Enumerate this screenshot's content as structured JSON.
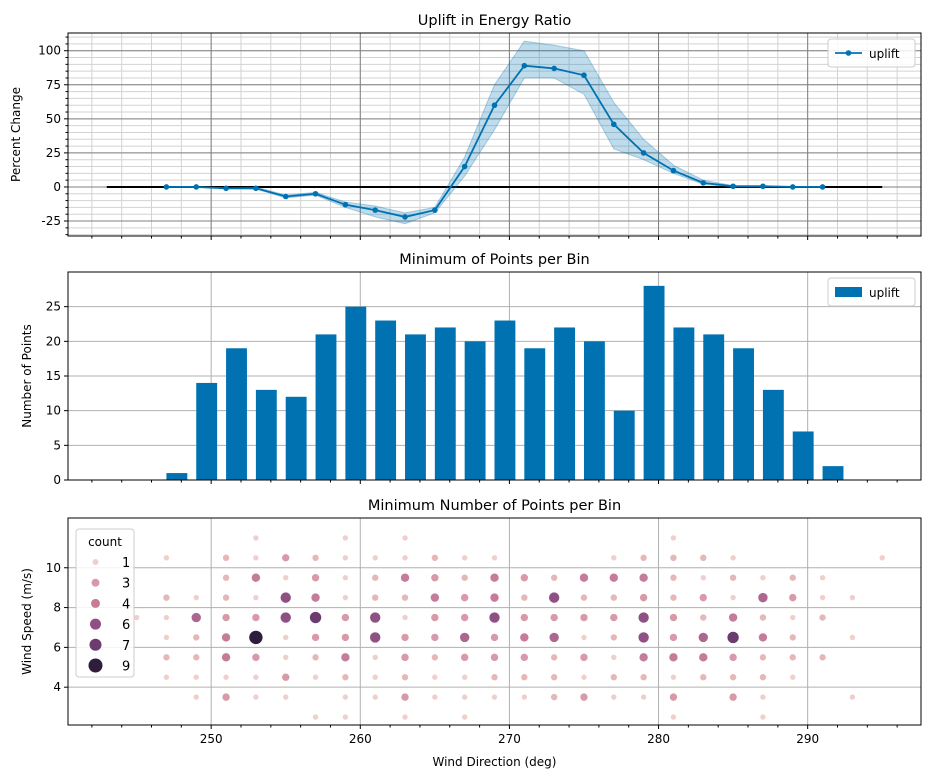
{
  "chart_data": [
    {
      "type": "line",
      "title": "Uplift in Energy Ratio",
      "xlabel": "",
      "ylabel": "Percent Change",
      "xlim": [
        240.4,
        297.6
      ],
      "ylim": [
        -36,
        113
      ],
      "yticks": [
        -25,
        0,
        25,
        50,
        75,
        100
      ],
      "grid": "major and minor",
      "legend": {
        "placement": "top-right",
        "entries": [
          "uplift"
        ]
      },
      "reference_line": {
        "y": 0,
        "x_range": [
          243,
          295
        ],
        "color": "#000000"
      },
      "x": [
        247,
        249,
        251,
        253,
        255,
        257,
        259,
        261,
        263,
        265,
        267,
        269,
        271,
        273,
        275,
        277,
        279,
        281,
        283,
        285,
        287,
        289,
        291
      ],
      "series": [
        {
          "name": "uplift",
          "color": "#0072b2",
          "values": [
            0,
            0,
            -1,
            -1,
            -7,
            -5,
            -13,
            -17,
            -22,
            -17,
            15,
            60,
            89,
            87,
            82,
            46,
            25,
            12,
            3,
            0.5,
            0.5,
            0,
            0
          ],
          "band_lower": [
            0,
            0,
            -1,
            -1.5,
            -8,
            -6,
            -15,
            -22,
            -27,
            -19,
            8,
            42,
            80,
            80,
            68,
            28,
            20,
            10,
            2,
            0,
            0,
            0,
            0
          ],
          "band_upper": [
            0,
            0,
            -1,
            0,
            -6,
            -4,
            -11,
            -14,
            -19,
            -15,
            22,
            75,
            107,
            104,
            100,
            62,
            35,
            16,
            5,
            1,
            1,
            0,
            0
          ]
        }
      ]
    },
    {
      "type": "bar",
      "title": "Minimum of Points per Bin",
      "xlabel": "",
      "ylabel": "Number of Points",
      "xlim": [
        240.4,
        297.6
      ],
      "ylim": [
        0,
        30
      ],
      "yticks": [
        0,
        5,
        10,
        15,
        20,
        25
      ],
      "grid": "major",
      "legend": {
        "placement": "top-right",
        "entries": [
          "uplift"
        ]
      },
      "bar_width": 1.4,
      "x": [
        247,
        249,
        251,
        253,
        255,
        257,
        259,
        261,
        263,
        265,
        267,
        269,
        271,
        273,
        275,
        277,
        279,
        281,
        283,
        285,
        287,
        289,
        291
      ],
      "series": [
        {
          "name": "uplift",
          "color": "#0072b2",
          "values": [
            1,
            14,
            19,
            13,
            12,
            21,
            25,
            23,
            21,
            22,
            20,
            23,
            19,
            22,
            20,
            10,
            28,
            22,
            21,
            19,
            13,
            7,
            2
          ]
        }
      ]
    },
    {
      "type": "scatter",
      "title": "Minimum Number of Points per Bin",
      "xlabel": "Wind Direction (deg)",
      "ylabel": "Wind Speed (m/s)",
      "xlim": [
        240.4,
        297.6
      ],
      "ylim": [
        2.1,
        12.5
      ],
      "xticks": [
        250,
        260,
        270,
        280,
        290
      ],
      "yticks": [
        4,
        6,
        8,
        10
      ],
      "grid": "major",
      "legend": {
        "placement": "top-left",
        "title": "count",
        "entries": [
          "1",
          "3",
          "4",
          "6",
          "7",
          "9"
        ]
      },
      "hue_colors": {
        "1": "#efcfcc",
        "2": "#e5b7b7",
        "3": "#d89aa8",
        "4": "#c57b9a",
        "5": "#ad6690",
        "6": "#8f5083",
        "7": "#6c3c71",
        "9": "#2d1e3e"
      },
      "points": [
        [
          253,
          11.5,
          1
        ],
        [
          259,
          11.5,
          1
        ],
        [
          263,
          11.5,
          1
        ],
        [
          281,
          11.5,
          1
        ],
        [
          247,
          10.5,
          1
        ],
        [
          251,
          10.5,
          2
        ],
        [
          253,
          10.5,
          1
        ],
        [
          255,
          10.5,
          3
        ],
        [
          257,
          10.5,
          2
        ],
        [
          259,
          10.5,
          1
        ],
        [
          261,
          10.5,
          1
        ],
        [
          263,
          10.5,
          1
        ],
        [
          265,
          10.5,
          2
        ],
        [
          267,
          10.5,
          1
        ],
        [
          269,
          10.5,
          1
        ],
        [
          277,
          10.5,
          1
        ],
        [
          279,
          10.5,
          2
        ],
        [
          281,
          10.5,
          2
        ],
        [
          283,
          10.5,
          2
        ],
        [
          285,
          10.5,
          1
        ],
        [
          295,
          10.5,
          1
        ],
        [
          251,
          9.5,
          2
        ],
        [
          253,
          9.5,
          4
        ],
        [
          255,
          9.5,
          1
        ],
        [
          257,
          9.5,
          3
        ],
        [
          259,
          9.5,
          1
        ],
        [
          261,
          9.5,
          2
        ],
        [
          263,
          9.5,
          4
        ],
        [
          265,
          9.5,
          3
        ],
        [
          267,
          9.5,
          2
        ],
        [
          269,
          9.5,
          4
        ],
        [
          271,
          9.5,
          3
        ],
        [
          273,
          9.5,
          2
        ],
        [
          275,
          9.5,
          4
        ],
        [
          277,
          9.5,
          4
        ],
        [
          279,
          9.5,
          4
        ],
        [
          281,
          9.5,
          2
        ],
        [
          283,
          9.5,
          1
        ],
        [
          285,
          9.5,
          2
        ],
        [
          287,
          9.5,
          1
        ],
        [
          289,
          9.5,
          2
        ],
        [
          291,
          9.5,
          1
        ],
        [
          247,
          8.5,
          2
        ],
        [
          249,
          8.5,
          1
        ],
        [
          251,
          8.5,
          2
        ],
        [
          253,
          8.5,
          1
        ],
        [
          255,
          8.5,
          6
        ],
        [
          257,
          8.5,
          4
        ],
        [
          259,
          8.5,
          1
        ],
        [
          261,
          8.5,
          2
        ],
        [
          263,
          8.5,
          2
        ],
        [
          265,
          8.5,
          4
        ],
        [
          267,
          8.5,
          3
        ],
        [
          269,
          8.5,
          4
        ],
        [
          271,
          8.5,
          2
        ],
        [
          273,
          8.5,
          6
        ],
        [
          275,
          8.5,
          2
        ],
        [
          277,
          8.5,
          2
        ],
        [
          279,
          8.5,
          3
        ],
        [
          281,
          8.5,
          2
        ],
        [
          283,
          8.5,
          3
        ],
        [
          285,
          8.5,
          1
        ],
        [
          287,
          8.5,
          5
        ],
        [
          289,
          8.5,
          3
        ],
        [
          291,
          8.5,
          1
        ],
        [
          293,
          8.5,
          1
        ],
        [
          245,
          7.5,
          1
        ],
        [
          247,
          7.5,
          1
        ],
        [
          249,
          7.5,
          5
        ],
        [
          251,
          7.5,
          3
        ],
        [
          253,
          7.5,
          3
        ],
        [
          255,
          7.5,
          6
        ],
        [
          257,
          7.5,
          7
        ],
        [
          259,
          7.5,
          3
        ],
        [
          261,
          7.5,
          6
        ],
        [
          263,
          7.5,
          1
        ],
        [
          265,
          7.5,
          3
        ],
        [
          267,
          7.5,
          3
        ],
        [
          269,
          7.5,
          6
        ],
        [
          271,
          7.5,
          3
        ],
        [
          273,
          7.5,
          3
        ],
        [
          275,
          7.5,
          3
        ],
        [
          277,
          7.5,
          3
        ],
        [
          279,
          7.5,
          6
        ],
        [
          281,
          7.5,
          3
        ],
        [
          283,
          7.5,
          2
        ],
        [
          285,
          7.5,
          4
        ],
        [
          287,
          7.5,
          2
        ],
        [
          289,
          7.5,
          1
        ],
        [
          291,
          7.5,
          2
        ],
        [
          247,
          6.5,
          1
        ],
        [
          249,
          6.5,
          2
        ],
        [
          251,
          6.5,
          4
        ],
        [
          253,
          6.5,
          9
        ],
        [
          255,
          6.5,
          1
        ],
        [
          257,
          6.5,
          3
        ],
        [
          259,
          6.5,
          3
        ],
        [
          261,
          6.5,
          6
        ],
        [
          263,
          6.5,
          3
        ],
        [
          265,
          6.5,
          3
        ],
        [
          267,
          6.5,
          5
        ],
        [
          269,
          6.5,
          3
        ],
        [
          271,
          6.5,
          4
        ],
        [
          273,
          6.5,
          5
        ],
        [
          275,
          6.5,
          1
        ],
        [
          277,
          6.5,
          2
        ],
        [
          279,
          6.5,
          6
        ],
        [
          281,
          6.5,
          3
        ],
        [
          283,
          6.5,
          5
        ],
        [
          285,
          6.5,
          7
        ],
        [
          287,
          6.5,
          4
        ],
        [
          289,
          6.5,
          2
        ],
        [
          293,
          6.5,
          1
        ],
        [
          247,
          5.5,
          2
        ],
        [
          249,
          5.5,
          2
        ],
        [
          251,
          5.5,
          4
        ],
        [
          253,
          5.5,
          3
        ],
        [
          255,
          5.5,
          1
        ],
        [
          257,
          5.5,
          2
        ],
        [
          259,
          5.5,
          4
        ],
        [
          261,
          5.5,
          1
        ],
        [
          263,
          5.5,
          3
        ],
        [
          265,
          5.5,
          2
        ],
        [
          267,
          5.5,
          3
        ],
        [
          269,
          5.5,
          3
        ],
        [
          271,
          5.5,
          3
        ],
        [
          273,
          5.5,
          2
        ],
        [
          275,
          5.5,
          3
        ],
        [
          277,
          5.5,
          1
        ],
        [
          279,
          5.5,
          4
        ],
        [
          281,
          5.5,
          4
        ],
        [
          283,
          5.5,
          4
        ],
        [
          285,
          5.5,
          3
        ],
        [
          287,
          5.5,
          2
        ],
        [
          289,
          5.5,
          2
        ],
        [
          291,
          5.5,
          2
        ],
        [
          247,
          4.5,
          1
        ],
        [
          249,
          4.5,
          1
        ],
        [
          251,
          4.5,
          1
        ],
        [
          253,
          4.5,
          1
        ],
        [
          255,
          4.5,
          3
        ],
        [
          257,
          4.5,
          1
        ],
        [
          259,
          4.5,
          2
        ],
        [
          261,
          4.5,
          1
        ],
        [
          263,
          4.5,
          2
        ],
        [
          265,
          4.5,
          1
        ],
        [
          267,
          4.5,
          1
        ],
        [
          269,
          4.5,
          2
        ],
        [
          271,
          4.5,
          2
        ],
        [
          273,
          4.5,
          2
        ],
        [
          275,
          4.5,
          1
        ],
        [
          277,
          4.5,
          2
        ],
        [
          279,
          4.5,
          2
        ],
        [
          281,
          4.5,
          1
        ],
        [
          283,
          4.5,
          2
        ],
        [
          285,
          4.5,
          2
        ],
        [
          287,
          4.5,
          2
        ],
        [
          289,
          4.5,
          1
        ],
        [
          249,
          3.5,
          1
        ],
        [
          251,
          3.5,
          3
        ],
        [
          253,
          3.5,
          1
        ],
        [
          255,
          3.5,
          1
        ],
        [
          259,
          3.5,
          1
        ],
        [
          261,
          3.5,
          1
        ],
        [
          263,
          3.5,
          3
        ],
        [
          265,
          3.5,
          1
        ],
        [
          267,
          3.5,
          1
        ],
        [
          269,
          3.5,
          1
        ],
        [
          271,
          3.5,
          1
        ],
        [
          273,
          3.5,
          2
        ],
        [
          275,
          3.5,
          3
        ],
        [
          277,
          3.5,
          1
        ],
        [
          279,
          3.5,
          1
        ],
        [
          281,
          3.5,
          3
        ],
        [
          285,
          3.5,
          3
        ],
        [
          287,
          3.5,
          1
        ],
        [
          293,
          3.5,
          1
        ],
        [
          257,
          2.5,
          1
        ],
        [
          259,
          2.5,
          1
        ],
        [
          263,
          2.5,
          1
        ],
        [
          267,
          2.5,
          1
        ],
        [
          281,
          2.5,
          1
        ],
        [
          287,
          2.5,
          1
        ]
      ]
    }
  ]
}
